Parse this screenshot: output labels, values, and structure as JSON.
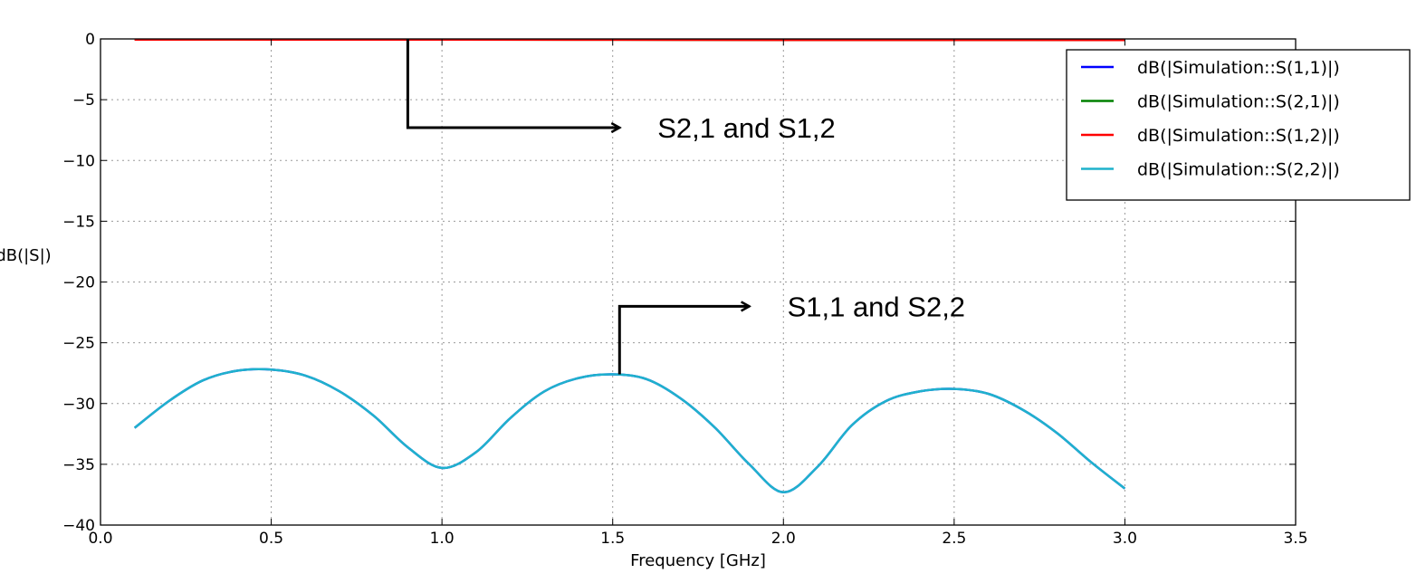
{
  "chart_data": {
    "type": "line",
    "title": "",
    "xlabel": "Frequency [GHz]",
    "ylabel": "dB(|S|)",
    "xlim": [
      0.0,
      3.5
    ],
    "ylim": [
      -40,
      0
    ],
    "xticks": [
      "0.0",
      "0.5",
      "1.0",
      "1.5",
      "2.0",
      "2.5",
      "3.0",
      "3.5"
    ],
    "yticks": [
      "0",
      "−5",
      "−10",
      "−15",
      "−20",
      "−25",
      "−30",
      "−35",
      "−40"
    ],
    "grid": true,
    "legend_position": "top-right",
    "series": [
      {
        "name": "dB(|Simulation::S(1,1)|)",
        "color": "#0000ff",
        "x": [
          0.1,
          0.2,
          0.3,
          0.4,
          0.5,
          0.6,
          0.7,
          0.8,
          0.9,
          1.0,
          1.1,
          1.2,
          1.3,
          1.4,
          1.5,
          1.6,
          1.7,
          1.8,
          1.9,
          2.0,
          2.1,
          2.2,
          2.3,
          2.4,
          2.5,
          2.6,
          2.7,
          2.8,
          2.9,
          3.0
        ],
        "values": [
          -32.0,
          -29.8,
          -28.1,
          -27.3,
          -27.2,
          -27.7,
          -29.0,
          -31.0,
          -33.6,
          -35.3,
          -34.0,
          -31.2,
          -29.0,
          -27.9,
          -27.6,
          -28.0,
          -29.6,
          -32.0,
          -35.0,
          -37.3,
          -35.2,
          -31.8,
          -29.8,
          -29.0,
          -28.8,
          -29.2,
          -30.5,
          -32.4,
          -34.8,
          -37.0
        ]
      },
      {
        "name": "dB(|Simulation::S(2,1)|)",
        "color": "#008000",
        "x": [
          0.1,
          0.5,
          1.0,
          1.5,
          2.0,
          2.5,
          3.0
        ],
        "values": [
          -0.05,
          -0.05,
          -0.06,
          -0.07,
          -0.08,
          -0.08,
          -0.09
        ]
      },
      {
        "name": "dB(|Simulation::S(1,2)|)",
        "color": "#ff0000",
        "x": [
          0.1,
          0.5,
          1.0,
          1.5,
          2.0,
          2.5,
          3.0
        ],
        "values": [
          -0.05,
          -0.05,
          -0.06,
          -0.07,
          -0.08,
          -0.08,
          -0.09
        ]
      },
      {
        "name": "dB(|Simulation::S(2,2)|)",
        "color": "#1fb2cc",
        "x": [
          0.1,
          0.2,
          0.3,
          0.4,
          0.5,
          0.6,
          0.7,
          0.8,
          0.9,
          1.0,
          1.1,
          1.2,
          1.3,
          1.4,
          1.5,
          1.6,
          1.7,
          1.8,
          1.9,
          2.0,
          2.1,
          2.2,
          2.3,
          2.4,
          2.5,
          2.6,
          2.7,
          2.8,
          2.9,
          3.0
        ],
        "values": [
          -32.0,
          -29.8,
          -28.1,
          -27.3,
          -27.2,
          -27.7,
          -29.0,
          -31.0,
          -33.6,
          -35.3,
          -34.0,
          -31.2,
          -29.0,
          -27.9,
          -27.6,
          -28.0,
          -29.6,
          -32.0,
          -35.0,
          -37.3,
          -35.2,
          -31.8,
          -29.8,
          -29.0,
          -28.8,
          -29.2,
          -30.5,
          -32.4,
          -34.8,
          -37.0
        ]
      }
    ],
    "annotations": [
      {
        "text": "S2,1 and S1,2",
        "start": [
          0.9,
          0.0
        ],
        "corner": [
          0.9,
          -7.3
        ],
        "end": [
          1.52,
          -7.3
        ]
      },
      {
        "text": "S1,1 and S2,2",
        "start": [
          1.52,
          -27.6
        ],
        "corner": [
          1.52,
          -22.0
        ],
        "end": [
          1.9,
          -22.0
        ]
      }
    ]
  }
}
